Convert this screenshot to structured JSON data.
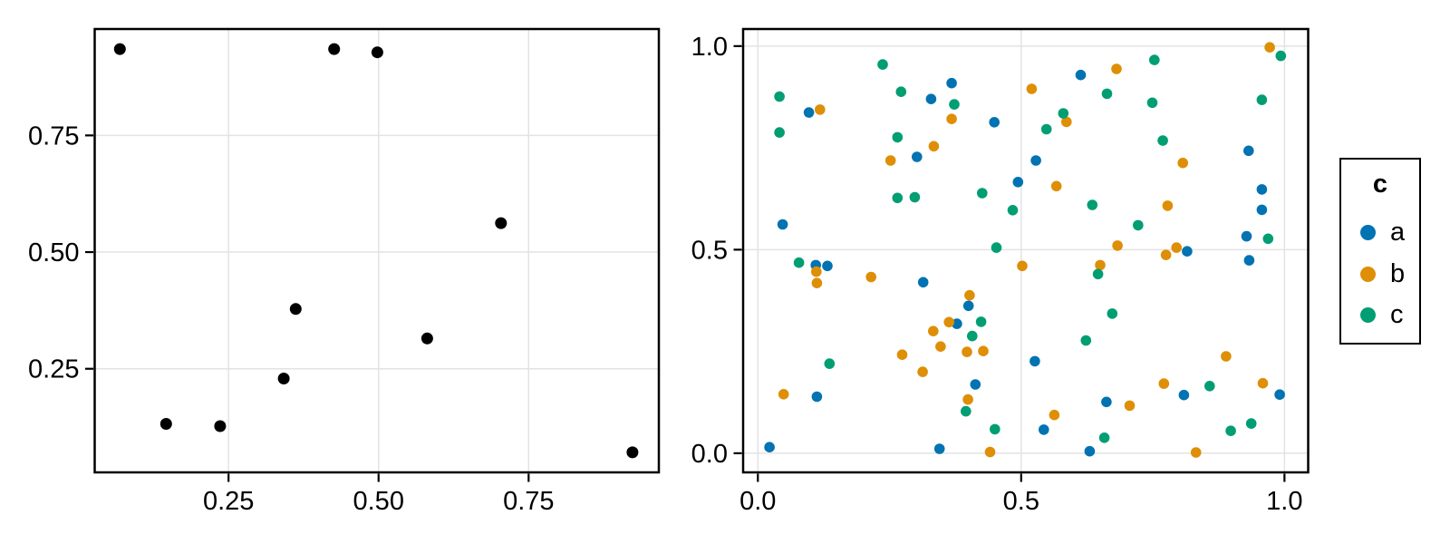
{
  "styles": {
    "background": "#FFFFFF",
    "grid_color": "#E3E3E3",
    "panel_border_color": "#000000",
    "tick_color": "#000000",
    "tick_label_color": "#000000",
    "accent_blue": "#0173B2",
    "accent_orange": "#DE8F05",
    "accent_green": "#029E73"
  },
  "legend": {
    "title": "c",
    "items": [
      {
        "label": "a",
        "color": "#0173B2"
      },
      {
        "label": "b",
        "color": "#DE8F05"
      },
      {
        "label": "c",
        "color": "#029E73"
      }
    ]
  },
  "chart_data": [
    {
      "type": "scatter",
      "panel": "left",
      "title": "",
      "xlabel": "",
      "ylabel": "",
      "grid": true,
      "legend_position": "none",
      "x_ticks": [
        0.25,
        0.5,
        0.75
      ],
      "x_tick_labels": [
        "0.25",
        "0.50",
        "0.75"
      ],
      "y_ticks": [
        0.25,
        0.5,
        0.75
      ],
      "y_tick_labels": [
        "0.25",
        "0.50",
        "0.75"
      ],
      "xlim": [
        0.027,
        0.967
      ],
      "ylim": [
        0.028,
        0.978
      ],
      "point_color": "#000000",
      "point_radius": 6.5,
      "points": [
        [
          0.069,
          0.935
        ],
        [
          0.426,
          0.935
        ],
        [
          0.498,
          0.928
        ],
        [
          0.704,
          0.562
        ],
        [
          0.362,
          0.378
        ],
        [
          0.581,
          0.315
        ],
        [
          0.342,
          0.229
        ],
        [
          0.146,
          0.132
        ],
        [
          0.236,
          0.127
        ],
        [
          0.923,
          0.071
        ]
      ]
    },
    {
      "type": "scatter",
      "panel": "right",
      "title": "",
      "xlabel": "",
      "ylabel": "",
      "grid": true,
      "legend_position": "right",
      "legend_title": "c",
      "x_ticks": [
        0.0,
        0.5,
        1.0
      ],
      "x_tick_labels": [
        "0.0",
        "0.5",
        "1.0"
      ],
      "y_ticks": [
        0.0,
        0.5,
        1.0
      ],
      "y_tick_labels": [
        "0.0",
        "0.5",
        "1.0"
      ],
      "xlim": [
        -0.028,
        1.045
      ],
      "ylim": [
        -0.047,
        1.042
      ],
      "point_radius": 5.8,
      "series": [
        {
          "name": "a",
          "color": "#0173B2",
          "points": [
            [
              0.368,
              0.909
            ],
            [
              0.613,
              0.929
            ],
            [
              0.097,
              0.837
            ],
            [
              0.329,
              0.87
            ],
            [
              0.449,
              0.813
            ],
            [
              0.932,
              0.743
            ],
            [
              0.302,
              0.728
            ],
            [
              0.528,
              0.719
            ],
            [
              0.494,
              0.666
            ],
            [
              0.957,
              0.648
            ],
            [
              0.957,
              0.598
            ],
            [
              0.047,
              0.562
            ],
            [
              0.928,
              0.533
            ],
            [
              0.815,
              0.496
            ],
            [
              0.933,
              0.474
            ],
            [
              0.11,
              0.462
            ],
            [
              0.132,
              0.46
            ],
            [
              0.314,
              0.42
            ],
            [
              0.4,
              0.362
            ],
            [
              0.378,
              0.318
            ],
            [
              0.526,
              0.226
            ],
            [
              0.413,
              0.169
            ],
            [
              0.809,
              0.143
            ],
            [
              0.991,
              0.144
            ],
            [
              0.662,
              0.126
            ],
            [
              0.112,
              0.139
            ],
            [
              0.543,
              0.058
            ],
            [
              0.022,
              0.015
            ],
            [
              0.345,
              0.011
            ],
            [
              0.63,
              0.005
            ]
          ]
        },
        {
          "name": "b",
          "color": "#DE8F05",
          "points": [
            [
              0.972,
              0.997
            ],
            [
              0.681,
              0.944
            ],
            [
              0.52,
              0.895
            ],
            [
              0.118,
              0.844
            ],
            [
              0.586,
              0.814
            ],
            [
              0.368,
              0.821
            ],
            [
              0.334,
              0.754
            ],
            [
              0.252,
              0.719
            ],
            [
              0.807,
              0.713
            ],
            [
              0.567,
              0.656
            ],
            [
              0.778,
              0.608
            ],
            [
              0.683,
              0.51
            ],
            [
              0.795,
              0.505
            ],
            [
              0.775,
              0.487
            ],
            [
              0.65,
              0.462
            ],
            [
              0.502,
              0.46
            ],
            [
              0.111,
              0.446
            ],
            [
              0.215,
              0.433
            ],
            [
              0.112,
              0.418
            ],
            [
              0.402,
              0.388
            ],
            [
              0.363,
              0.322
            ],
            [
              0.333,
              0.3
            ],
            [
              0.347,
              0.262
            ],
            [
              0.397,
              0.249
            ],
            [
              0.428,
              0.251
            ],
            [
              0.274,
              0.242
            ],
            [
              0.313,
              0.2
            ],
            [
              0.889,
              0.238
            ],
            [
              0.771,
              0.171
            ],
            [
              0.959,
              0.172
            ],
            [
              0.563,
              0.094
            ],
            [
              0.706,
              0.117
            ],
            [
              0.399,
              0.132
            ],
            [
              0.441,
              0.003
            ],
            [
              0.832,
              0.002
            ],
            [
              0.049,
              0.145
            ]
          ]
        },
        {
          "name": "c",
          "color": "#029E73",
          "points": [
            [
              0.237,
              0.955
            ],
            [
              0.753,
              0.966
            ],
            [
              0.993,
              0.976
            ],
            [
              0.663,
              0.883
            ],
            [
              0.041,
              0.876
            ],
            [
              0.272,
              0.888
            ],
            [
              0.373,
              0.857
            ],
            [
              0.957,
              0.868
            ],
            [
              0.749,
              0.861
            ],
            [
              0.58,
              0.835
            ],
            [
              0.041,
              0.788
            ],
            [
              0.548,
              0.796
            ],
            [
              0.265,
              0.776
            ],
            [
              0.769,
              0.768
            ],
            [
              0.265,
              0.627
            ],
            [
              0.298,
              0.629
            ],
            [
              0.426,
              0.639
            ],
            [
              0.635,
              0.61
            ],
            [
              0.484,
              0.597
            ],
            [
              0.722,
              0.56
            ],
            [
              0.969,
              0.527
            ],
            [
              0.453,
              0.505
            ],
            [
              0.078,
              0.468
            ],
            [
              0.646,
              0.44
            ],
            [
              0.673,
              0.343
            ],
            [
              0.424,
              0.323
            ],
            [
              0.407,
              0.288
            ],
            [
              0.623,
              0.277
            ],
            [
              0.136,
              0.22
            ],
            [
              0.858,
              0.165
            ],
            [
              0.395,
              0.103
            ],
            [
              0.45,
              0.059
            ],
            [
              0.658,
              0.038
            ],
            [
              0.898,
              0.055
            ],
            [
              0.937,
              0.073
            ]
          ]
        }
      ]
    }
  ]
}
